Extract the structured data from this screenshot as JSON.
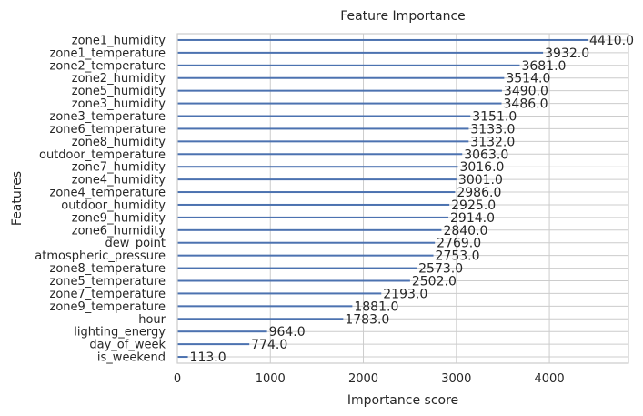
{
  "chart_data": {
    "type": "bar",
    "orientation": "horizontal",
    "title": "Feature Importance",
    "xlabel": "Importance score",
    "ylabel": "Features",
    "xlim": [
      0,
      4850
    ],
    "xticks": [
      0,
      1000,
      2000,
      3000,
      4000
    ],
    "grid": true,
    "bar_color": "#4c72b0",
    "categories": [
      "zone1_humidity",
      "zone1_temperature",
      "zone2_temperature",
      "zone2_humidity",
      "zone5_humidity",
      "zone3_humidity",
      "zone3_temperature",
      "zone6_temperature",
      "zone8_humidity",
      "outdoor_temperature",
      "zone7_humidity",
      "zone4_humidity",
      "zone4_temperature",
      "outdoor_humidity",
      "zone9_humidity",
      "zone6_humidity",
      "dew_point",
      "atmospheric_pressure",
      "zone8_temperature",
      "zone5_temperature",
      "zone7_temperature",
      "zone9_temperature",
      "hour",
      "lighting_energy",
      "day_of_week",
      "is_weekend"
    ],
    "values": [
      4410.0,
      3932.0,
      3681.0,
      3514.0,
      3490.0,
      3486.0,
      3151.0,
      3133.0,
      3132.0,
      3063.0,
      3016.0,
      3001.0,
      2986.0,
      2925.0,
      2914.0,
      2840.0,
      2769.0,
      2753.0,
      2573.0,
      2502.0,
      2193.0,
      1881.0,
      1783.0,
      964.0,
      774.0,
      113.0
    ],
    "value_labels": [
      "4410.0",
      "3932.0",
      "3681.0",
      "3514.0",
      "3490.0",
      "3486.0",
      "3151.0",
      "3133.0",
      "3132.0",
      "3063.0",
      "3016.0",
      "3001.0",
      "2986.0",
      "2925.0",
      "2914.0",
      "2840.0",
      "2769.0",
      "2753.0",
      "2573.0",
      "2502.0",
      "2193.0",
      "1881.0",
      "1783.0",
      "964.0",
      "774.0",
      "113.0"
    ]
  }
}
